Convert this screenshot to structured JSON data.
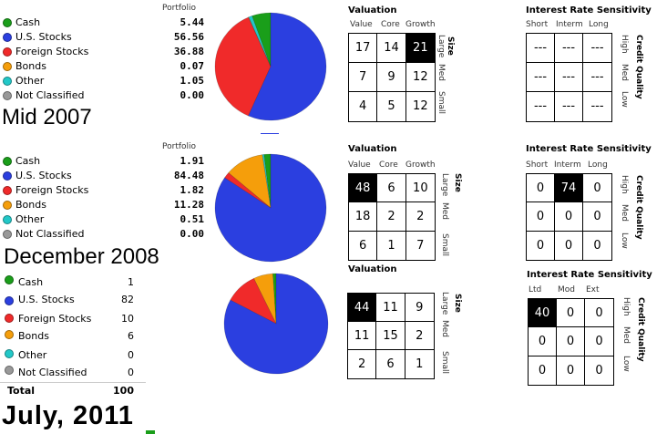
{
  "snapshots": [
    {
      "period": "Mid 2007",
      "portfolio_header": "Portfolio",
      "allocation": [
        {
          "label": "Cash",
          "value": "5.44",
          "color": "#1a9e1a"
        },
        {
          "label": "U.S. Stocks",
          "value": "56.56",
          "color": "#2b3fe0"
        },
        {
          "label": "Foreign Stocks",
          "value": "36.88",
          "color": "#f02a2a"
        },
        {
          "label": "Bonds",
          "value": "0.07",
          "color": "#f59e0b"
        },
        {
          "label": "Other",
          "value": "1.05",
          "color": "#22c8c8"
        },
        {
          "label": "Not Classified",
          "value": "0.00",
          "color": "#999999"
        }
      ],
      "valuation": {
        "title": "Valuation",
        "columns": [
          "Value",
          "Core",
          "Growth"
        ],
        "axis_label": "Size",
        "rows": [
          "Large",
          "Med",
          "Small"
        ],
        "cells": [
          [
            "17",
            "14",
            "21"
          ],
          [
            "7",
            "9",
            "12"
          ],
          [
            "4",
            "5",
            "12"
          ]
        ]
      },
      "rate": {
        "title": "Interest Rate Sensitivity",
        "columns": [
          "Short",
          "Interm",
          "Long"
        ],
        "axis_label": "Credit Quality",
        "rows": [
          "High",
          "Med",
          "Low"
        ],
        "cells": [
          [
            "---",
            "---",
            "---"
          ],
          [
            "---",
            "---",
            "---"
          ],
          [
            "---",
            "---",
            "---"
          ]
        ]
      }
    },
    {
      "period": "December 2008",
      "portfolio_header": "Portfolio",
      "allocation": [
        {
          "label": "Cash",
          "value": "1.91",
          "color": "#1a9e1a"
        },
        {
          "label": "U.S. Stocks",
          "value": "84.48",
          "color": "#2b3fe0"
        },
        {
          "label": "Foreign Stocks",
          "value": "1.82",
          "color": "#f02a2a"
        },
        {
          "label": "Bonds",
          "value": "11.28",
          "color": "#f59e0b"
        },
        {
          "label": "Other",
          "value": "0.51",
          "color": "#22c8c8"
        },
        {
          "label": "Not Classified",
          "value": "0.00",
          "color": "#999999"
        }
      ],
      "valuation": {
        "title": "Valuation",
        "columns": [
          "Value",
          "Core",
          "Growth"
        ],
        "axis_label": "Size",
        "rows": [
          "Large",
          "Med",
          "Small"
        ],
        "cells": [
          [
            "48",
            "6",
            "10"
          ],
          [
            "18",
            "2",
            "2"
          ],
          [
            "6",
            "1",
            "7"
          ]
        ]
      },
      "rate": {
        "title": "Interest Rate Sensitivity",
        "columns": [
          "Short",
          "Interm",
          "Long"
        ],
        "axis_label": "Credit Quality",
        "rows": [
          "High",
          "Med",
          "Low"
        ],
        "cells": [
          [
            "0",
            "74",
            "0"
          ],
          [
            "0",
            "0",
            "0"
          ],
          [
            "0",
            "0",
            "0"
          ]
        ]
      }
    },
    {
      "period": "July, 2011",
      "allocation": [
        {
          "label": "Cash",
          "value": "1",
          "color": "#1a9e1a"
        },
        {
          "label": "U.S. Stocks",
          "value": "82",
          "color": "#2b3fe0"
        },
        {
          "label": "Foreign Stocks",
          "value": "10",
          "color": "#f02a2a"
        },
        {
          "label": "Bonds",
          "value": "6",
          "color": "#f59e0b"
        },
        {
          "label": "Other",
          "value": "0",
          "color": "#22c8c8"
        },
        {
          "label": "Not Classified",
          "value": "0",
          "color": "#999999"
        }
      ],
      "total": {
        "label": "Total",
        "value": "100"
      },
      "valuation": {
        "title": "Valuation",
        "columns": [],
        "axis_label": "Size",
        "rows": [
          "Large",
          "Med",
          "Small"
        ],
        "cells": [
          [
            "44",
            "11",
            "9"
          ],
          [
            "11",
            "15",
            "2"
          ],
          [
            "2",
            "6",
            "1"
          ]
        ]
      },
      "rate": {
        "title": "Interest Rate Sensitivity",
        "columns": [
          "Ltd",
          "Mod",
          "Ext"
        ],
        "axis_label": "Credit Quality",
        "rows": [
          "High",
          "Med",
          "Low"
        ],
        "cells": [
          [
            "40",
            "0",
            "0"
          ],
          [
            "0",
            "0",
            "0"
          ],
          [
            "0",
            "0",
            "0"
          ]
        ]
      }
    }
  ],
  "colors": {
    "highlight_cell": "#000000",
    "grid_border": "#000000"
  }
}
